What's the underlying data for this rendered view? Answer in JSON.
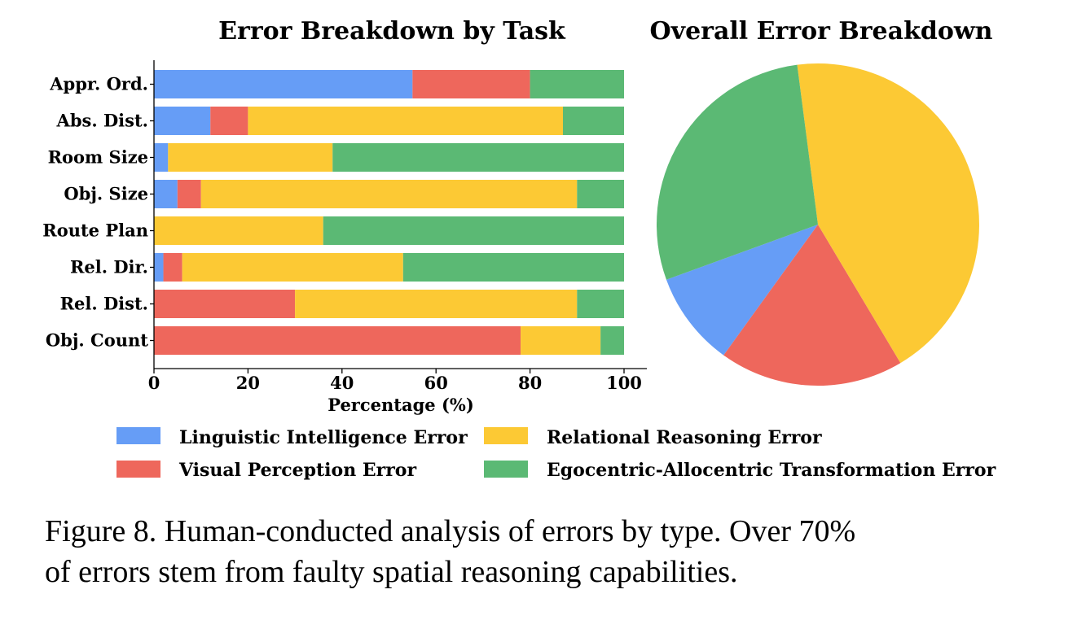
{
  "chart_data": [
    {
      "type": "bar",
      "orientation": "horizontal",
      "stacked": true,
      "title": "Error Breakdown by Task",
      "xlabel": "Percentage (%)",
      "ylabel": "",
      "xlim": [
        0,
        100
      ],
      "xticks": [
        "0",
        "20",
        "40",
        "60",
        "80",
        "100"
      ],
      "categories": [
        "Appr. Ord.",
        "Abs. Dist.",
        "Room Size",
        "Obj. Size",
        "Route Plan",
        "Rel. Dir.",
        "Rel. Dist.",
        "Obj. Count"
      ],
      "series": [
        {
          "name": "Linguistic Intelligence Error",
          "color": "#669df6",
          "values": [
            55,
            12,
            3,
            5,
            0,
            2,
            0,
            0
          ]
        },
        {
          "name": "Visual Perception Error",
          "color": "#ee675c",
          "values": [
            25,
            8,
            0,
            5,
            0,
            4,
            30,
            78
          ]
        },
        {
          "name": "Relational Reasoning Error",
          "color": "#fcc934",
          "values": [
            0,
            67,
            35,
            80,
            36,
            47,
            60,
            17
          ]
        },
        {
          "name": "Egocentric-Allocentric Transformation Error",
          "color": "#5bb974",
          "values": [
            20,
            13,
            62,
            10,
            64,
            47,
            10,
            5
          ]
        }
      ],
      "grid": false,
      "legend": "bottom"
    },
    {
      "type": "pie",
      "title": "Overall Error Breakdown",
      "labels": [
        "Linguistic Intelligence Error",
        "Visual Perception Error",
        "Relational Reasoning Error",
        "Egocentric-Allocentric Transformation Error"
      ],
      "values": [
        9.5,
        18.5,
        43.5,
        28.5
      ],
      "colors": [
        "#669df6",
        "#ee675c",
        "#fcc934",
        "#5bb974"
      ]
    }
  ],
  "caption": {
    "line1": "Figure 8. Human-conducted analysis of errors by type. Over 70%",
    "line2": "of errors stem from faulty spatial reasoning capabilities."
  }
}
